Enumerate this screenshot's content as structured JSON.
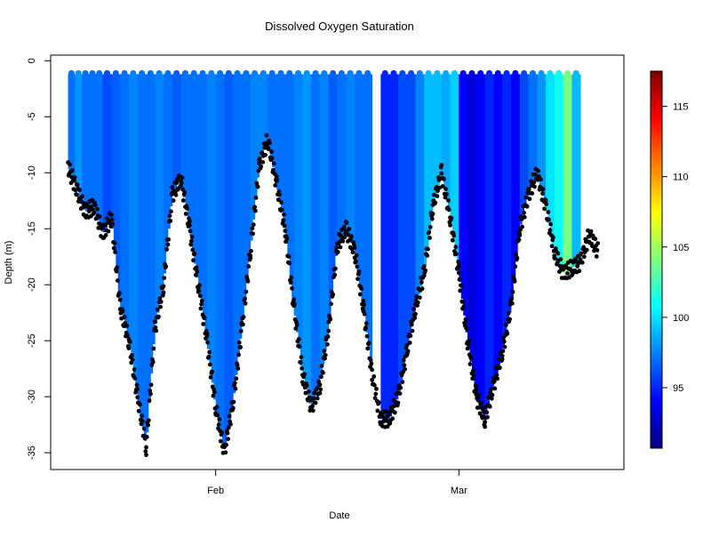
{
  "chart_data": {
    "type": "scatter",
    "title": "Dissolved Oxygen Saturation",
    "xlabel": "Date",
    "ylabel": "Depth (m)",
    "x_ticks": [
      {
        "label": "Feb",
        "value": "2013-02-01"
      },
      {
        "label": "Mar",
        "value": "2013-03-01"
      }
    ],
    "xlim": [
      "2013-01-13",
      "2013-03-20"
    ],
    "y_ticks": [
      0,
      -5,
      -10,
      -15,
      -20,
      -25,
      -30,
      -35
    ],
    "ylim": [
      -36.5,
      0.5
    ],
    "grid": false,
    "colorbar": {
      "position": "right",
      "ticks": [
        95,
        100,
        105,
        110,
        115
      ],
      "range": [
        90.7,
        117.5
      ],
      "colormap": [
        "#00007f",
        "#0000ff",
        "#007fff",
        "#00ffff",
        "#7fff7f",
        "#ffff00",
        "#ff7f00",
        "#ff0000",
        "#7f0000"
      ]
    },
    "bottom_depth_series": {
      "color": "#000000",
      "points": [
        [
          "2013-01-15",
          -9.5
        ],
        [
          "2013-01-16",
          -11.5
        ],
        [
          "2013-01-17",
          -13.5
        ],
        [
          "2013-01-18",
          -13
        ],
        [
          "2013-01-19",
          -15.5
        ],
        [
          "2013-01-20",
          -14
        ],
        [
          "2013-01-21",
          -22
        ],
        [
          "2013-01-22",
          -25
        ],
        [
          "2013-01-23",
          -30
        ],
        [
          "2013-01-24",
          -34.5
        ],
        [
          "2013-01-25",
          -24
        ],
        [
          "2013-01-26",
          -20
        ],
        [
          "2013-01-27",
          -12
        ],
        [
          "2013-01-28",
          -10.5
        ],
        [
          "2013-01-29",
          -15
        ],
        [
          "2013-01-30",
          -20
        ],
        [
          "2013-01-31",
          -25
        ],
        [
          "2013-02-01",
          -31
        ],
        [
          "2013-02-02",
          -35
        ],
        [
          "2013-02-03",
          -30.5
        ],
        [
          "2013-02-04",
          -24
        ],
        [
          "2013-02-05",
          -17
        ],
        [
          "2013-02-06",
          -9.5
        ],
        [
          "2013-02-07",
          -7
        ],
        [
          "2013-02-08",
          -11
        ],
        [
          "2013-02-09",
          -15
        ],
        [
          "2013-02-10",
          -22
        ],
        [
          "2013-02-11",
          -28
        ],
        [
          "2013-02-12",
          -31
        ],
        [
          "2013-02-13",
          -29
        ],
        [
          "2013-02-14",
          -24
        ],
        [
          "2013-02-15",
          -16.5
        ],
        [
          "2013-02-16",
          -15
        ],
        [
          "2013-02-17",
          -17
        ],
        [
          "2013-02-18",
          -22
        ],
        [
          "2013-02-19",
          -28
        ],
        [
          "2013-02-20",
          -32
        ],
        [
          "2013-02-21",
          -32
        ],
        [
          "2013-02-22",
          -30
        ],
        [
          "2013-02-23",
          -26
        ],
        [
          "2013-02-24",
          -22
        ],
        [
          "2013-02-25",
          -19
        ],
        [
          "2013-02-26",
          -13
        ],
        [
          "2013-02-27",
          -10
        ],
        [
          "2013-02-28",
          -14
        ],
        [
          "2013-03-01",
          -19
        ],
        [
          "2013-03-02",
          -25
        ],
        [
          "2013-03-03",
          -30
        ],
        [
          "2013-03-04",
          -32
        ],
        [
          "2013-03-05",
          -29
        ],
        [
          "2013-03-06",
          -26
        ],
        [
          "2013-03-07",
          -22
        ],
        [
          "2013-03-08",
          -15
        ],
        [
          "2013-03-09",
          -12
        ],
        [
          "2013-03-10",
          -10
        ],
        [
          "2013-03-11",
          -13
        ],
        [
          "2013-03-12",
          -17
        ],
        [
          "2013-03-13",
          -19
        ],
        [
          "2013-03-14",
          -18.5
        ],
        [
          "2013-03-15",
          -18
        ],
        [
          "2013-03-16",
          -15.5
        ],
        [
          "2013-03-17",
          -17
        ]
      ]
    },
    "saturation_profiles": {
      "gap": [
        "2013-02-19",
        "2013-02-20"
      ],
      "segments": [
        {
          "start": "2013-01-15",
          "end": "2013-01-19",
          "values": [
            97,
            98,
            97,
            97,
            97
          ]
        },
        {
          "start": "2013-01-19",
          "end": "2013-01-29",
          "values": [
            96,
            96.5,
            97,
            97.5,
            97,
            97,
            97.5,
            97,
            96.5,
            97
          ]
        },
        {
          "start": "2013-01-29",
          "end": "2013-02-09",
          "values": [
            97,
            97,
            97.5,
            97,
            96.5,
            97,
            97,
            97.5,
            97.5,
            97,
            97
          ]
        },
        {
          "start": "2013-02-09",
          "end": "2013-02-19",
          "values": [
            97,
            97.5,
            98,
            97,
            97.5,
            96.5,
            97,
            97.5,
            97,
            97
          ]
        },
        {
          "start": "2013-02-20",
          "end": "2013-03-01",
          "values": [
            95,
            95,
            96,
            96,
            97.5,
            99,
            99,
            98.5,
            99.5
          ]
        },
        {
          "start": "2013-03-01",
          "end": "2013-03-12",
          "values": [
            94,
            93,
            94,
            95,
            94,
            95,
            94,
            96,
            97,
            98,
            100
          ]
        },
        {
          "start": "2013-03-12",
          "end": "2013-03-15",
          "values": [
            101,
            104,
            99
          ]
        }
      ]
    }
  }
}
